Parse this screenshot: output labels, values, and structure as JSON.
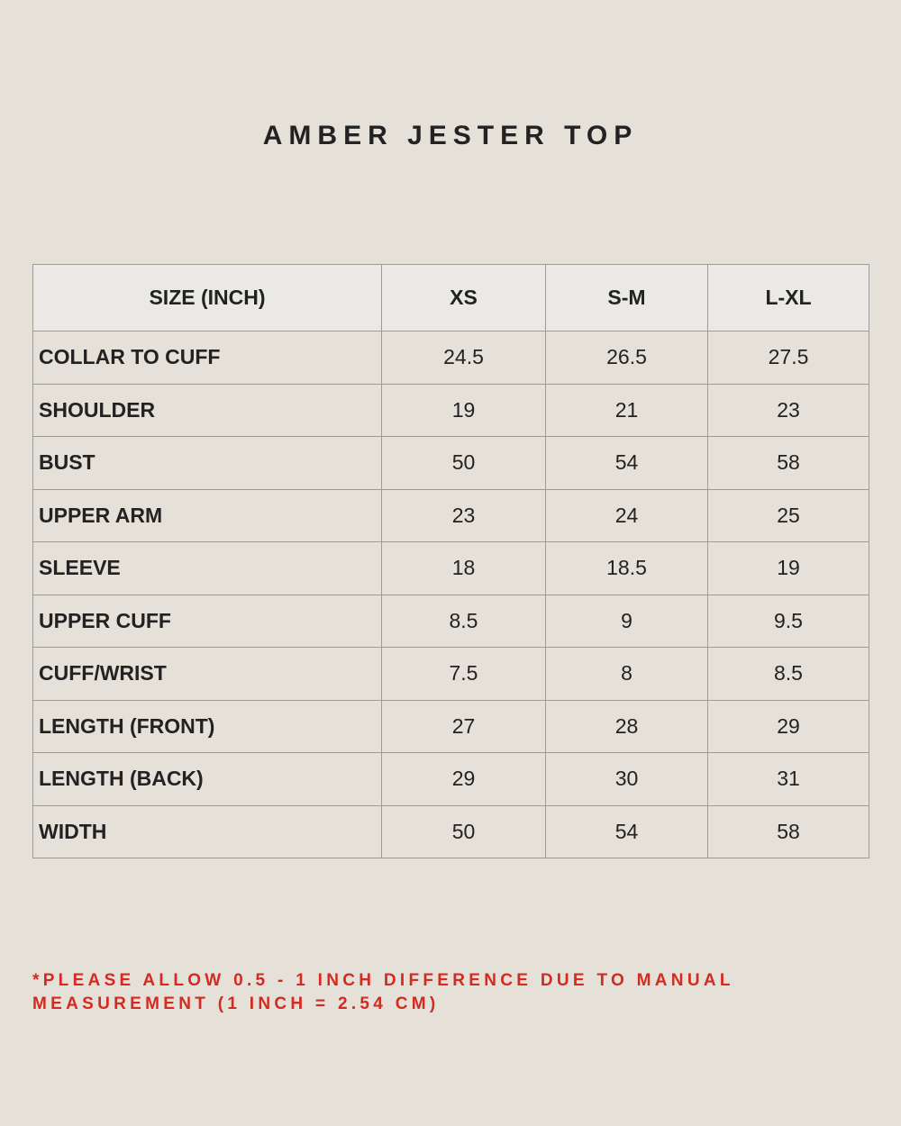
{
  "title": "AMBER JESTER TOP",
  "table": {
    "header": [
      "SIZE (INCH)",
      "XS",
      "S-M",
      "L-XL"
    ],
    "rows": [
      [
        "COLLAR TO CUFF",
        "24.5",
        "26.5",
        "27.5"
      ],
      [
        "SHOULDER",
        "19",
        "21",
        "23"
      ],
      [
        "BUST",
        "50",
        "54",
        "58"
      ],
      [
        "UPPER ARM",
        "23",
        "24",
        "25"
      ],
      [
        "SLEEVE",
        "18",
        "18.5",
        "19"
      ],
      [
        "UPPER CUFF",
        "8.5",
        "9",
        "9.5"
      ],
      [
        "CUFF/WRIST",
        "7.5",
        "8",
        "8.5"
      ],
      [
        "LENGTH (FRONT)",
        "27",
        "28",
        "29"
      ],
      [
        "LENGTH (BACK)",
        "29",
        "30",
        "31"
      ],
      [
        "WIDTH",
        "50",
        "54",
        "58"
      ]
    ]
  },
  "note": [
    "*PLEASE ALLOW 0.5 - 1 INCH DIFFERENCE DUE TO MANUAL",
    "MEASUREMENT (1 INCH = 2.54 CM)"
  ]
}
